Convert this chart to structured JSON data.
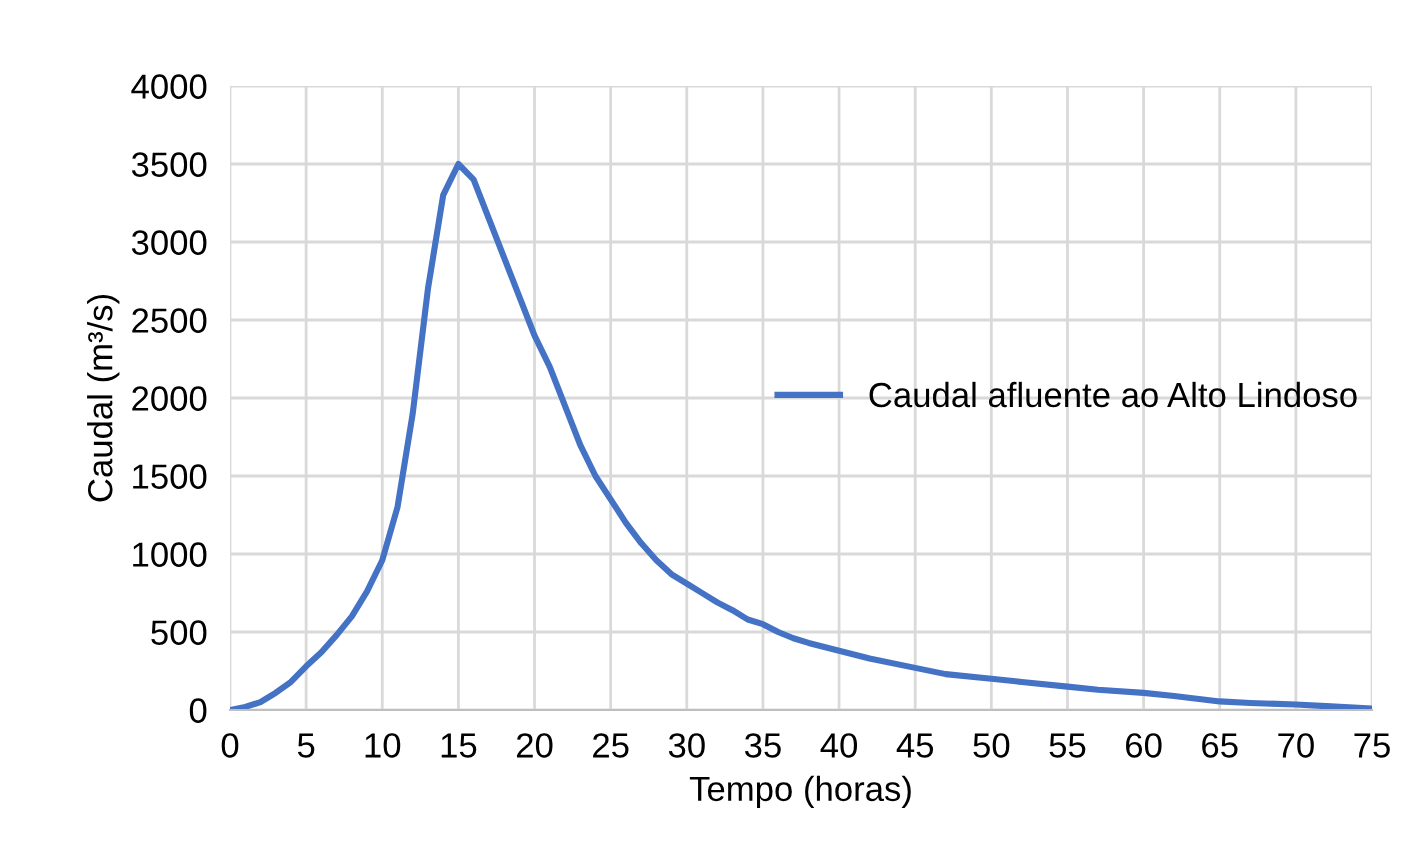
{
  "chart_data": {
    "type": "line",
    "xlabel": "Tempo (horas)",
    "ylabel": "Caudal (m³/s)",
    "x": [
      0,
      1,
      2,
      3,
      4,
      5,
      6,
      7,
      8,
      9,
      10,
      11,
      12,
      13,
      14,
      15,
      16,
      17,
      18,
      19,
      20,
      21,
      22,
      23,
      24,
      25,
      26,
      27,
      28,
      29,
      30,
      31,
      32,
      33,
      34,
      35,
      36,
      37,
      38,
      40,
      42,
      45,
      47,
      50,
      52,
      55,
      57,
      60,
      62,
      65,
      67,
      70,
      72,
      75
    ],
    "series": [
      {
        "name": "Caudal afluente ao Alto Lindoso",
        "color": "#4472c4",
        "values": [
          0,
          20,
          50,
          110,
          180,
          280,
          370,
          480,
          600,
          760,
          960,
          1300,
          1900,
          2700,
          3300,
          3500,
          3400,
          3150,
          2900,
          2650,
          2400,
          2200,
          1950,
          1700,
          1500,
          1350,
          1200,
          1070,
          960,
          870,
          810,
          750,
          690,
          640,
          580,
          550,
          500,
          460,
          430,
          380,
          330,
          270,
          230,
          200,
          180,
          150,
          130,
          110,
          90,
          55,
          45,
          35,
          25,
          10
        ]
      }
    ],
    "xlim": [
      0,
      75
    ],
    "xticks": [
      0,
      5,
      10,
      15,
      20,
      25,
      30,
      35,
      40,
      45,
      50,
      55,
      60,
      65,
      70,
      75
    ],
    "ylim": [
      0,
      4000
    ],
    "yticks": [
      0,
      500,
      1000,
      1500,
      2000,
      2500,
      3000,
      3500,
      4000
    ],
    "grid": true,
    "legend": "right",
    "marker": "none",
    "line_style": "solid"
  }
}
